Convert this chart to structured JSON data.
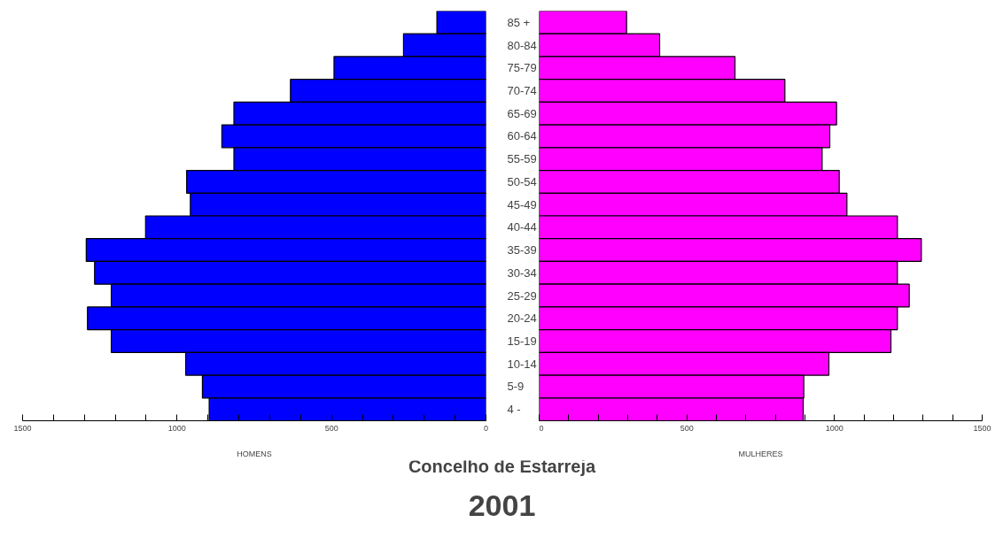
{
  "chart_data": [
    {
      "type": "bar",
      "orientation": "horizontal",
      "title": "2001",
      "subtitle": "Concelho de Estarreja",
      "xlabel": "HOMENS",
      "categories": [
        "85 +",
        "80-84",
        "75-79",
        "70-74",
        "65-69",
        "60-64",
        "55-59",
        "50-54",
        "45-49",
        "40-44",
        "35-39",
        "30-34",
        "25-29",
        "20-24",
        "15-19",
        "10-14",
        "5-9",
        "4 -"
      ],
      "series": [
        {
          "color": "#0000ff",
          "values": [
            159,
            267,
            492,
            633,
            816,
            855,
            816,
            969,
            957,
            1102,
            1294,
            1267,
            1213,
            1290,
            1213,
            972,
            918,
            896
          ]
        }
      ],
      "xlim": [
        1500,
        0
      ],
      "xticks": [
        {
          "value": 1500,
          "label": "1500"
        },
        {
          "value": 1400,
          "label": null
        },
        {
          "value": 1300,
          "label": null
        },
        {
          "value": 1200,
          "label": null
        },
        {
          "value": 1100,
          "label": null
        },
        1000,
        {
          "value": 900,
          "label": null
        },
        {
          "value": 800,
          "label": null
        },
        {
          "value": 700,
          "label": null
        },
        {
          "value": 600,
          "label": null
        },
        500,
        {
          "value": 400,
          "label": null
        },
        {
          "value": 300,
          "label": null
        },
        {
          "value": 200,
          "label": null
        },
        {
          "value": 100,
          "label": null
        },
        0
      ],
      "grid": false
    },
    {
      "type": "bar",
      "orientation": "horizontal",
      "xlabel": "MULHERES",
      "series": [
        {
          "color": "#ff00ff",
          "values": [
            296,
            408,
            663,
            832,
            1007,
            984,
            958,
            1016,
            1042,
            1213,
            1294,
            1213,
            1253,
            1213,
            1191,
            981,
            896,
            894
          ]
        }
      ],
      "xlim": [
        0,
        1500
      ],
      "xticks": [
        0,
        {
          "value": 100,
          "label": null
        },
        {
          "value": 200,
          "label": null
        },
        {
          "value": 300,
          "label": null
        },
        {
          "value": 400,
          "label": null
        },
        500,
        {
          "value": 600,
          "label": null
        },
        {
          "value": 700,
          "label": null
        },
        {
          "value": 800,
          "label": null
        },
        {
          "value": 900,
          "label": null
        },
        1000,
        {
          "value": 1100,
          "label": null
        },
        {
          "value": 1200,
          "label": null
        },
        {
          "value": 1300,
          "label": null
        },
        {
          "value": 1400,
          "label": null
        },
        1500
      ],
      "tick_labels": "x",
      "grid": false
    }
  ]
}
